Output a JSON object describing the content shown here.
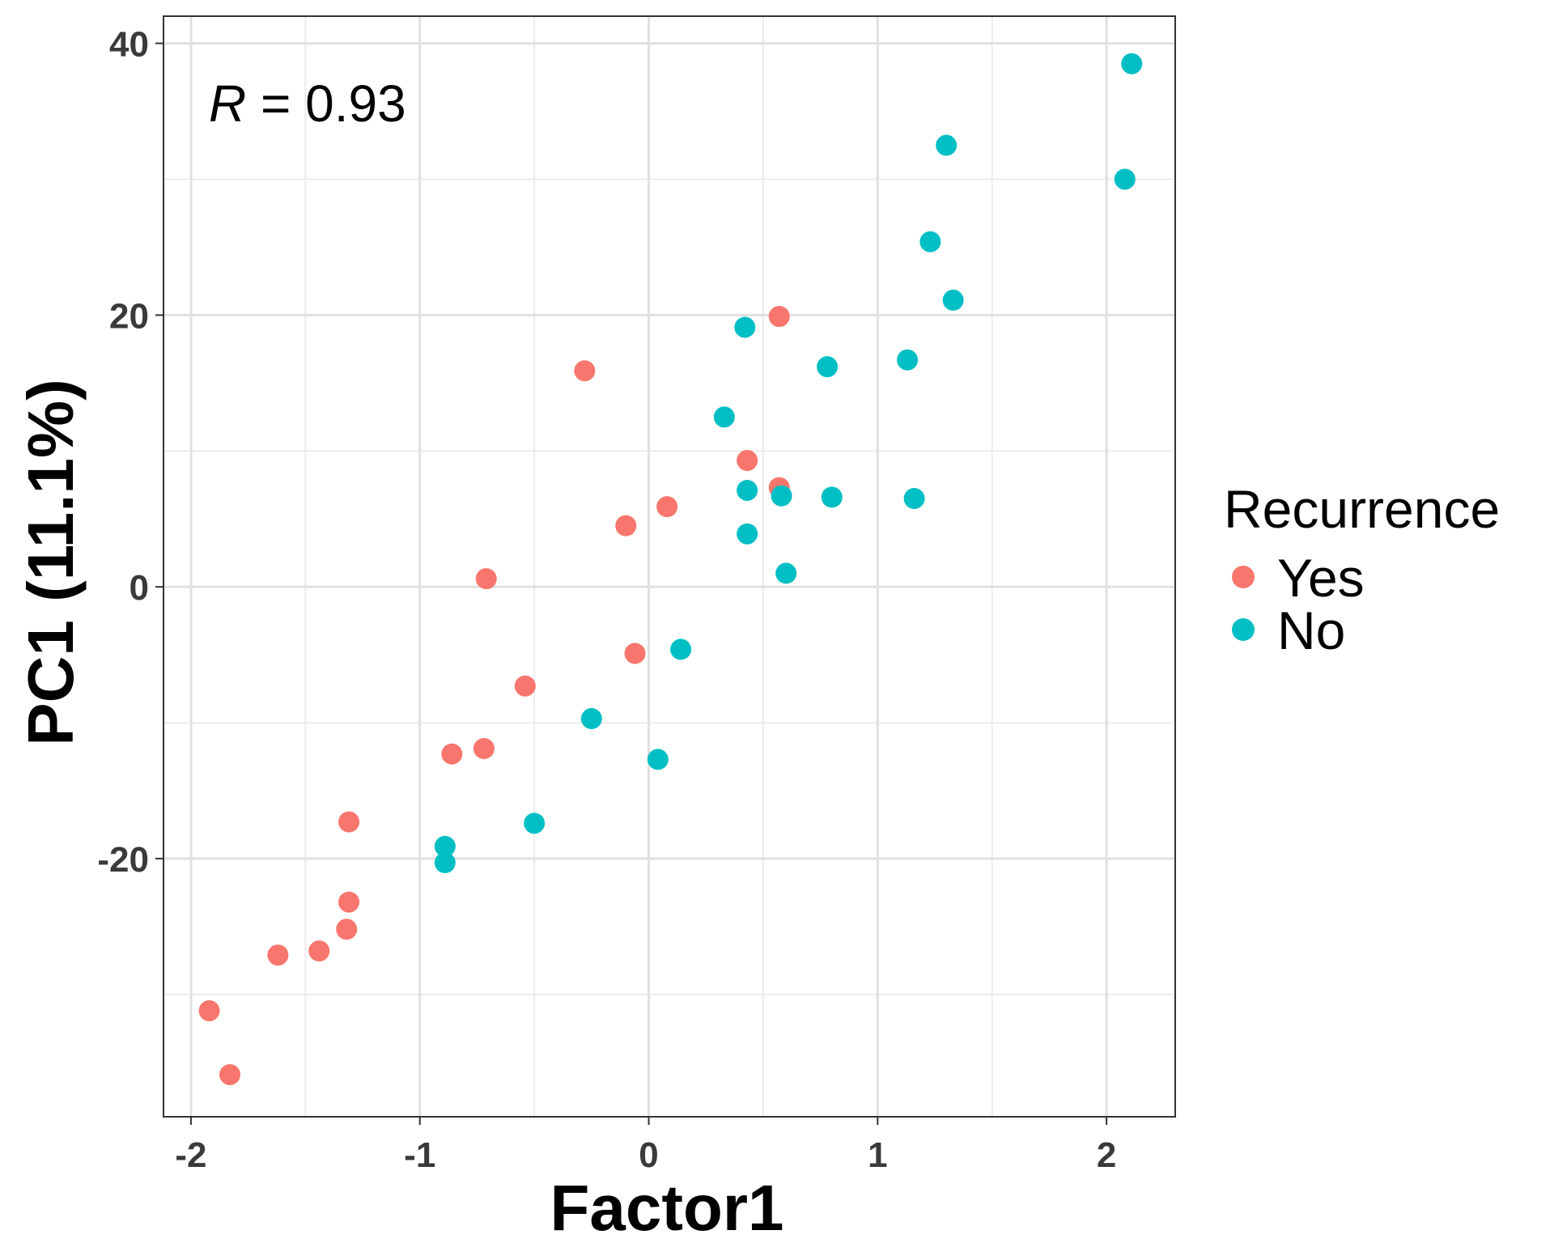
{
  "chart_data": {
    "type": "scatter",
    "xlabel": "Factor1",
    "ylabel": "PC1 (11.1%)",
    "xlim": [
      -2.12,
      2.3
    ],
    "ylim": [
      -39,
      42
    ],
    "x_ticks": [
      -2,
      -1,
      0,
      1,
      2
    ],
    "x_tick_labels": [
      "-2",
      "-1",
      "0",
      "1",
      "2"
    ],
    "y_ticks": [
      -20,
      0,
      20,
      40
    ],
    "y_tick_labels": [
      "-20",
      "0",
      "20",
      "40"
    ],
    "x_minor_ticks": [
      -1.5,
      -0.5,
      0.5,
      1.5
    ],
    "y_minor_ticks": [
      -30,
      -10,
      10,
      30
    ],
    "grid": true,
    "annotation": {
      "italic": "R",
      "rest": " = 0.93"
    },
    "legend": {
      "title": "Recurrence",
      "position": "right"
    },
    "series": [
      {
        "name": "Yes",
        "color": "#F8766D",
        "points": [
          [
            -1.92,
            -31.2
          ],
          [
            -1.83,
            -35.9
          ],
          [
            -1.62,
            -27.1
          ],
          [
            -1.44,
            -26.8
          ],
          [
            -1.32,
            -25.2
          ],
          [
            -1.31,
            -23.2
          ],
          [
            -1.31,
            -17.3
          ],
          [
            -0.86,
            -12.3
          ],
          [
            -0.72,
            -11.9
          ],
          [
            -0.71,
            0.6
          ],
          [
            -0.54,
            -7.3
          ],
          [
            -0.28,
            15.9
          ],
          [
            -0.1,
            4.5
          ],
          [
            -0.06,
            -4.9
          ],
          [
            0.08,
            5.9
          ],
          [
            0.43,
            9.3
          ],
          [
            0.57,
            7.3
          ],
          [
            0.57,
            19.9
          ]
        ]
      },
      {
        "name": "No",
        "color": "#00BFC4",
        "points": [
          [
            -0.89,
            -19.1
          ],
          [
            -0.89,
            -20.3
          ],
          [
            -0.5,
            -17.4
          ],
          [
            -0.25,
            -9.7
          ],
          [
            0.04,
            -12.7
          ],
          [
            0.14,
            -4.6
          ],
          [
            0.33,
            12.5
          ],
          [
            0.42,
            19.1
          ],
          [
            0.43,
            7.1
          ],
          [
            0.43,
            3.9
          ],
          [
            0.58,
            6.7
          ],
          [
            0.6,
            1.0
          ],
          [
            0.78,
            16.2
          ],
          [
            0.8,
            6.6
          ],
          [
            1.13,
            16.7
          ],
          [
            1.16,
            6.5
          ],
          [
            1.23,
            25.4
          ],
          [
            1.3,
            32.5
          ],
          [
            1.33,
            21.1
          ],
          [
            2.08,
            30.0
          ],
          [
            2.11,
            38.5
          ]
        ]
      }
    ]
  }
}
